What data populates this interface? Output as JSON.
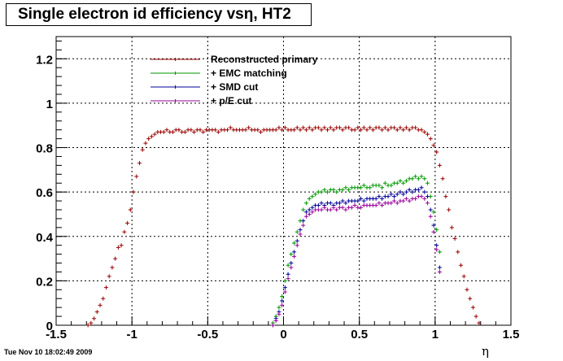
{
  "chart_data": {
    "type": "scatter",
    "title": "Single electron id efficiency vsη, HT2",
    "xlabel": "η",
    "ylabel": "",
    "xlim": [
      -1.5,
      1.5
    ],
    "ylim": [
      0,
      1.3
    ],
    "x_ticks": [
      -1.5,
      -1,
      -0.5,
      0,
      0.5,
      1,
      1.5
    ],
    "x_tick_labels": [
      "-1.5",
      "-1",
      "-0.5",
      "0",
      "0.5",
      "1",
      "1.5"
    ],
    "y_ticks": [
      0,
      0.2,
      0.4,
      0.6,
      0.8,
      1,
      1.2
    ],
    "y_tick_labels": [
      "0",
      "0.2",
      "0.4",
      "0.6",
      "0.8",
      "1",
      "1.2"
    ],
    "grid": true,
    "legend_position": "top-center",
    "series": [
      {
        "name": "Reconstructed primary",
        "color": "#990000",
        "x": [
          -1.29,
          -1.27,
          -1.25,
          -1.23,
          -1.21,
          -1.19,
          -1.17,
          -1.15,
          -1.13,
          -1.11,
          -1.09,
          -1.07,
          -1.05,
          -1.03,
          -1.01,
          -0.99,
          -0.97,
          -0.95,
          -0.93,
          -0.91,
          -0.89,
          -0.87,
          -0.85,
          -0.83,
          -0.81,
          -0.79,
          -0.77,
          -0.75,
          -0.73,
          -0.71,
          -0.69,
          -0.67,
          -0.65,
          -0.63,
          -0.61,
          -0.59,
          -0.57,
          -0.55,
          -0.53,
          -0.51,
          -0.49,
          -0.47,
          -0.45,
          -0.43,
          -0.41,
          -0.39,
          -0.37,
          -0.35,
          -0.33,
          -0.31,
          -0.29,
          -0.27,
          -0.25,
          -0.23,
          -0.21,
          -0.19,
          -0.17,
          -0.15,
          -0.13,
          -0.11,
          -0.09,
          -0.07,
          -0.05,
          -0.03,
          -0.01,
          0.01,
          0.03,
          0.05,
          0.07,
          0.09,
          0.11,
          0.13,
          0.15,
          0.17,
          0.19,
          0.21,
          0.23,
          0.25,
          0.27,
          0.29,
          0.31,
          0.33,
          0.35,
          0.37,
          0.39,
          0.41,
          0.43,
          0.45,
          0.47,
          0.49,
          0.51,
          0.53,
          0.55,
          0.57,
          0.59,
          0.61,
          0.63,
          0.65,
          0.67,
          0.69,
          0.71,
          0.73,
          0.75,
          0.77,
          0.79,
          0.81,
          0.83,
          0.85,
          0.87,
          0.89,
          0.91,
          0.93,
          0.95,
          0.97,
          0.99,
          1.01,
          1.03,
          1.05,
          1.07,
          1.09,
          1.11,
          1.13,
          1.15,
          1.17,
          1.19,
          1.21,
          1.23,
          1.25,
          1.27,
          1.29
        ],
        "y": [
          0.0,
          0.01,
          0.03,
          0.06,
          0.09,
          0.12,
          0.17,
          0.22,
          0.26,
          0.3,
          0.35,
          0.36,
          0.42,
          0.46,
          0.52,
          0.6,
          0.67,
          0.73,
          0.79,
          0.82,
          0.84,
          0.85,
          0.86,
          0.87,
          0.87,
          0.87,
          0.88,
          0.87,
          0.87,
          0.88,
          0.88,
          0.87,
          0.87,
          0.88,
          0.88,
          0.87,
          0.88,
          0.88,
          0.87,
          0.88,
          0.88,
          0.88,
          0.88,
          0.87,
          0.88,
          0.88,
          0.88,
          0.89,
          0.88,
          0.88,
          0.88,
          0.88,
          0.88,
          0.89,
          0.88,
          0.88,
          0.88,
          0.87,
          0.88,
          0.88,
          0.88,
          0.88,
          0.88,
          0.89,
          0.88,
          0.89,
          0.88,
          0.88,
          0.88,
          0.89,
          0.88,
          0.89,
          0.88,
          0.89,
          0.88,
          0.89,
          0.89,
          0.88,
          0.89,
          0.88,
          0.89,
          0.88,
          0.89,
          0.89,
          0.88,
          0.89,
          0.89,
          0.88,
          0.88,
          0.89,
          0.88,
          0.89,
          0.88,
          0.89,
          0.88,
          0.89,
          0.89,
          0.88,
          0.89,
          0.88,
          0.89,
          0.89,
          0.88,
          0.89,
          0.88,
          0.89,
          0.88,
          0.89,
          0.89,
          0.88,
          0.88,
          0.87,
          0.86,
          0.84,
          0.81,
          0.78,
          0.72,
          0.66,
          0.58,
          0.52,
          0.44,
          0.39,
          0.33,
          0.27,
          0.22,
          0.16,
          0.12,
          0.08,
          0.04,
          0.01
        ]
      },
      {
        "name": "+ EMC matching",
        "color": "#009900",
        "x": [
          -0.07,
          -0.05,
          -0.03,
          -0.01,
          0.01,
          0.03,
          0.05,
          0.07,
          0.09,
          0.11,
          0.13,
          0.15,
          0.17,
          0.19,
          0.21,
          0.23,
          0.25,
          0.27,
          0.29,
          0.31,
          0.33,
          0.35,
          0.37,
          0.39,
          0.41,
          0.43,
          0.45,
          0.47,
          0.49,
          0.51,
          0.53,
          0.55,
          0.57,
          0.59,
          0.61,
          0.63,
          0.65,
          0.67,
          0.69,
          0.71,
          0.73,
          0.75,
          0.77,
          0.79,
          0.81,
          0.83,
          0.85,
          0.87,
          0.89,
          0.91,
          0.93,
          0.95,
          0.97,
          0.99,
          1.01,
          1.03
        ],
        "y": [
          0.01,
          0.04,
          0.08,
          0.13,
          0.2,
          0.27,
          0.32,
          0.37,
          0.42,
          0.47,
          0.52,
          0.55,
          0.57,
          0.58,
          0.59,
          0.6,
          0.6,
          0.61,
          0.6,
          0.61,
          0.61,
          0.6,
          0.61,
          0.61,
          0.62,
          0.61,
          0.62,
          0.62,
          0.62,
          0.62,
          0.63,
          0.62,
          0.62,
          0.63,
          0.63,
          0.63,
          0.62,
          0.64,
          0.63,
          0.63,
          0.64,
          0.64,
          0.65,
          0.64,
          0.65,
          0.66,
          0.66,
          0.67,
          0.66,
          0.67,
          0.66,
          0.64,
          0.58,
          0.51,
          0.43,
          0.33
        ]
      },
      {
        "name": "+ SMD cut",
        "color": "#000099",
        "x": [
          -0.07,
          -0.05,
          -0.03,
          -0.01,
          0.01,
          0.03,
          0.05,
          0.07,
          0.09,
          0.11,
          0.13,
          0.15,
          0.17,
          0.19,
          0.21,
          0.23,
          0.25,
          0.27,
          0.29,
          0.31,
          0.33,
          0.35,
          0.37,
          0.39,
          0.41,
          0.43,
          0.45,
          0.47,
          0.49,
          0.51,
          0.53,
          0.55,
          0.57,
          0.59,
          0.61,
          0.63,
          0.65,
          0.67,
          0.69,
          0.71,
          0.73,
          0.75,
          0.77,
          0.79,
          0.81,
          0.83,
          0.85,
          0.87,
          0.89,
          0.91,
          0.93,
          0.95,
          0.97,
          0.99,
          1.01,
          1.03
        ],
        "y": [
          0.0,
          0.03,
          0.06,
          0.11,
          0.17,
          0.23,
          0.28,
          0.33,
          0.38,
          0.43,
          0.47,
          0.51,
          0.52,
          0.53,
          0.54,
          0.54,
          0.55,
          0.54,
          0.55,
          0.55,
          0.54,
          0.55,
          0.55,
          0.56,
          0.55,
          0.56,
          0.56,
          0.56,
          0.56,
          0.57,
          0.56,
          0.57,
          0.57,
          0.57,
          0.57,
          0.58,
          0.57,
          0.58,
          0.58,
          0.59,
          0.58,
          0.59,
          0.6,
          0.59,
          0.6,
          0.61,
          0.6,
          0.61,
          0.61,
          0.62,
          0.6,
          0.58,
          0.52,
          0.45,
          0.36,
          0.26
        ]
      },
      {
        "name": "+ p/E cut",
        "color": "#990099",
        "x": [
          -0.07,
          -0.05,
          -0.03,
          -0.01,
          0.01,
          0.03,
          0.05,
          0.07,
          0.09,
          0.11,
          0.13,
          0.15,
          0.17,
          0.19,
          0.21,
          0.23,
          0.25,
          0.27,
          0.29,
          0.31,
          0.33,
          0.35,
          0.37,
          0.39,
          0.41,
          0.43,
          0.45,
          0.47,
          0.49,
          0.51,
          0.53,
          0.55,
          0.57,
          0.59,
          0.61,
          0.63,
          0.65,
          0.67,
          0.69,
          0.71,
          0.73,
          0.75,
          0.77,
          0.79,
          0.81,
          0.83,
          0.85,
          0.87,
          0.89,
          0.91,
          0.93,
          0.95,
          0.97,
          0.99,
          1.01,
          1.03
        ],
        "y": [
          0.0,
          0.02,
          0.05,
          0.09,
          0.15,
          0.21,
          0.26,
          0.31,
          0.36,
          0.41,
          0.45,
          0.49,
          0.5,
          0.51,
          0.52,
          0.52,
          0.52,
          0.53,
          0.52,
          0.52,
          0.53,
          0.52,
          0.53,
          0.53,
          0.52,
          0.53,
          0.53,
          0.54,
          0.53,
          0.53,
          0.54,
          0.54,
          0.54,
          0.54,
          0.54,
          0.55,
          0.54,
          0.55,
          0.55,
          0.55,
          0.56,
          0.55,
          0.56,
          0.56,
          0.57,
          0.56,
          0.57,
          0.57,
          0.58,
          0.58,
          0.57,
          0.55,
          0.49,
          0.42,
          0.34,
          0.24
        ]
      }
    ]
  },
  "timestamp": "Tue Nov 10 18:02:49 2009"
}
